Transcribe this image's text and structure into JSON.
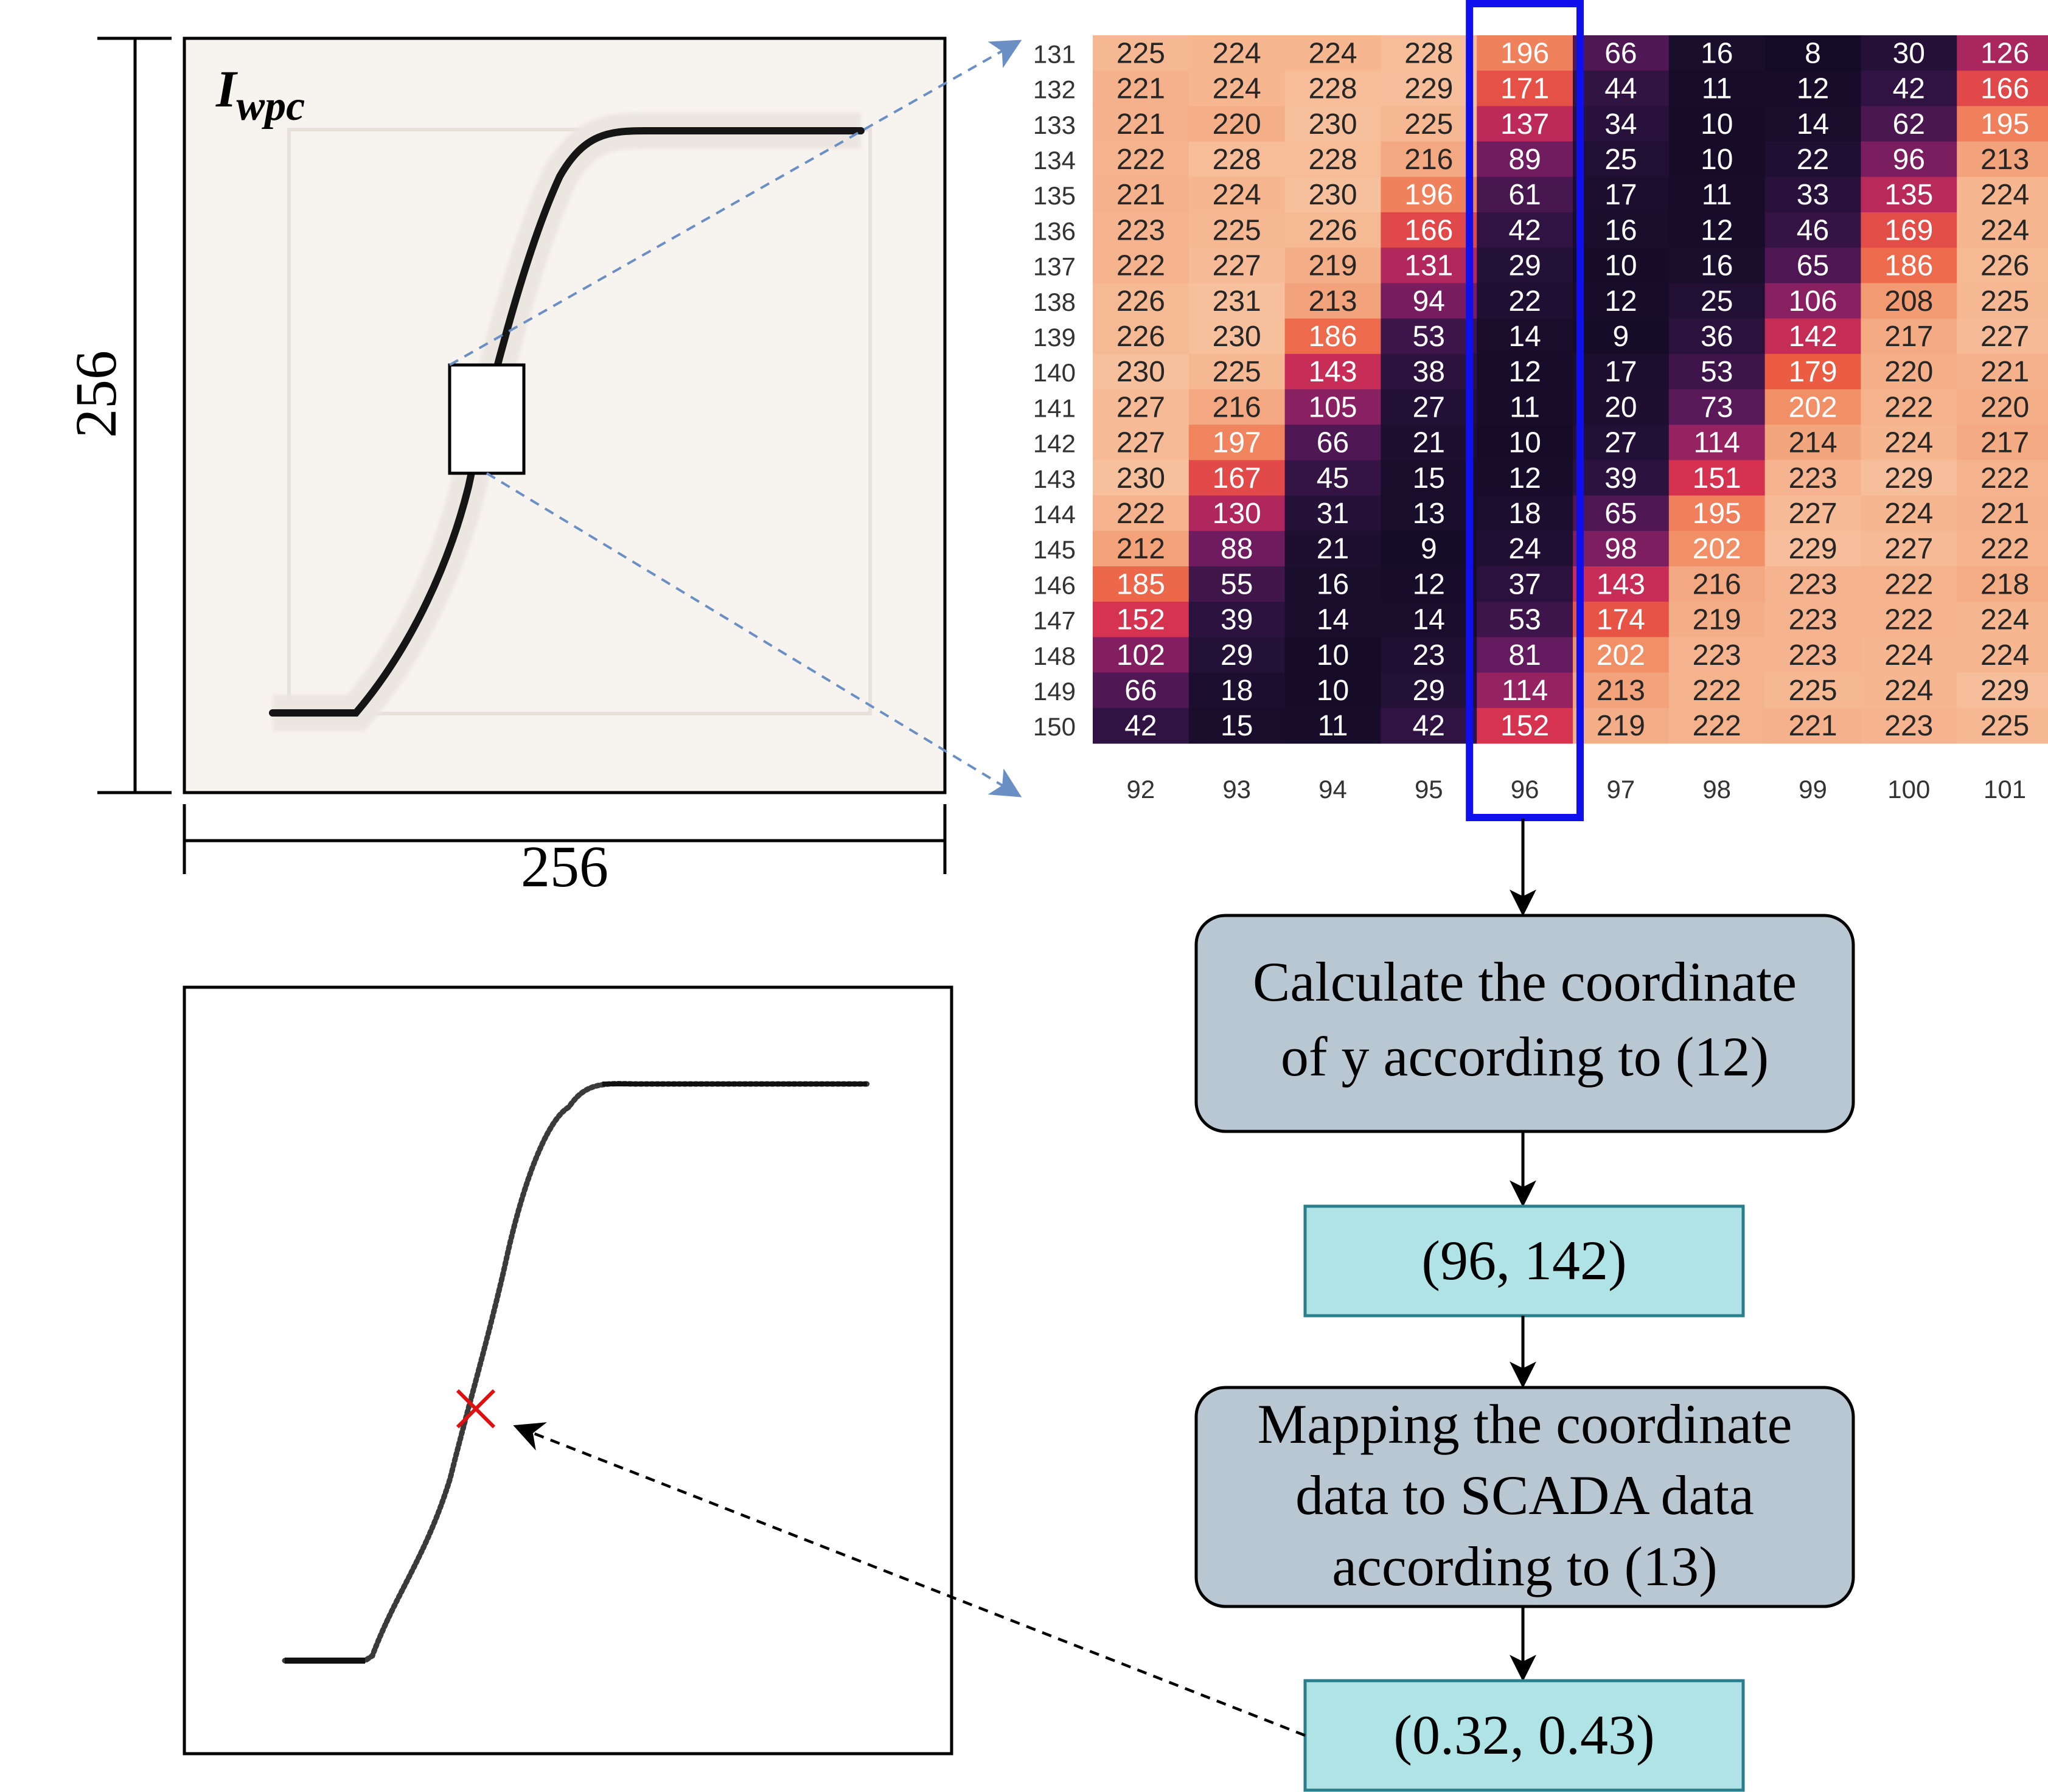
{
  "top_image": {
    "title": "I",
    "title_subscript": "wpc",
    "height_label": "256",
    "width_label": "256"
  },
  "heatmap": {
    "row_labels": [
      "131",
      "132",
      "133",
      "134",
      "135",
      "136",
      "137",
      "138",
      "139",
      "140",
      "141",
      "142",
      "143",
      "144",
      "145",
      "146",
      "147",
      "148",
      "149",
      "150"
    ],
    "col_labels": [
      "92",
      "93",
      "94",
      "95",
      "96",
      "97",
      "98",
      "99",
      "100",
      "101"
    ],
    "highlight_column": "96",
    "values": [
      [
        225,
        224,
        224,
        228,
        196,
        66,
        16,
        8,
        30,
        126
      ],
      [
        221,
        224,
        228,
        229,
        171,
        44,
        11,
        12,
        42,
        166
      ],
      [
        221,
        220,
        230,
        225,
        137,
        34,
        10,
        14,
        62,
        195
      ],
      [
        222,
        228,
        228,
        216,
        89,
        25,
        10,
        22,
        96,
        213
      ],
      [
        221,
        224,
        230,
        196,
        61,
        17,
        11,
        33,
        135,
        224
      ],
      [
        223,
        225,
        226,
        166,
        42,
        16,
        12,
        46,
        169,
        224
      ],
      [
        222,
        227,
        219,
        131,
        29,
        10,
        16,
        65,
        186,
        226
      ],
      [
        226,
        231,
        213,
        94,
        22,
        12,
        25,
        106,
        208,
        225
      ],
      [
        226,
        230,
        186,
        53,
        14,
        9,
        36,
        142,
        217,
        227
      ],
      [
        230,
        225,
        143,
        38,
        12,
        17,
        53,
        179,
        220,
        221
      ],
      [
        227,
        216,
        105,
        27,
        11,
        20,
        73,
        202,
        222,
        220
      ],
      [
        227,
        197,
        66,
        21,
        10,
        27,
        114,
        214,
        224,
        217
      ],
      [
        230,
        167,
        45,
        15,
        12,
        39,
        151,
        223,
        229,
        222
      ],
      [
        222,
        130,
        31,
        13,
        18,
        65,
        195,
        227,
        224,
        221
      ],
      [
        212,
        88,
        21,
        9,
        24,
        98,
        202,
        229,
        227,
        222
      ],
      [
        185,
        55,
        16,
        12,
        37,
        143,
        216,
        223,
        222,
        218
      ],
      [
        152,
        39,
        14,
        14,
        53,
        174,
        219,
        223,
        222,
        224
      ],
      [
        102,
        29,
        10,
        23,
        81,
        202,
        223,
        223,
        224,
        224
      ],
      [
        66,
        18,
        10,
        29,
        114,
        213,
        222,
        225,
        224,
        229
      ],
      [
        42,
        15,
        11,
        42,
        152,
        219,
        222,
        221,
        223,
        225
      ]
    ]
  },
  "flow": {
    "step1_lines": [
      "Calculate the coordinate",
      "of y according to (12)"
    ],
    "result1": "(96, 142)",
    "step2_lines": [
      "Mapping the coordinate",
      "data to SCADA data",
      "according to (13)"
    ],
    "result2": "(0.32, 0.43)"
  },
  "colors": {
    "highlight_box": "#1010ee",
    "zoom_arrows": "#6a8fc4",
    "process_box_fill": "#b9c7d3",
    "result_box_fill": "#afe3e5",
    "result_box_stroke": "#2b7e8c",
    "marker": "#e01010"
  }
}
